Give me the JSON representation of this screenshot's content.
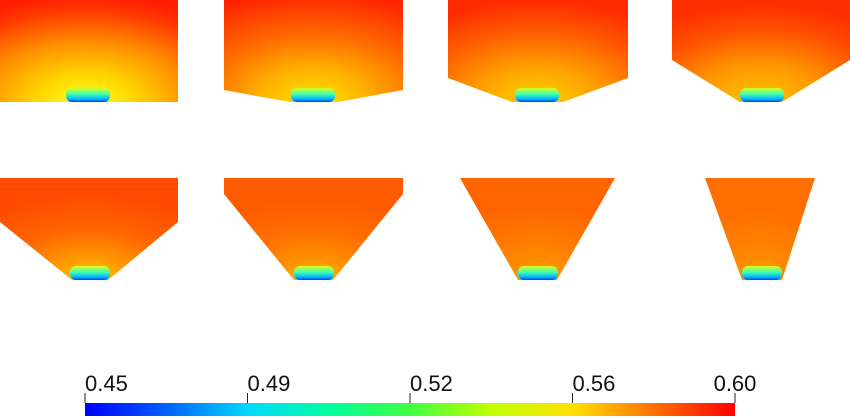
{
  "figure": {
    "panel_count": 8,
    "colors": {
      "low": "#0000ff",
      "mid": "#00ff7f",
      "high": "#ff0000",
      "field_warm": "#ff8a00"
    }
  },
  "colorbar": {
    "min": 0.45,
    "max": 0.6,
    "ticks": [
      "0.45",
      "0.49",
      "0.52",
      "0.56",
      "0.60"
    ],
    "tick_values": [
      0.45,
      0.49,
      0.52,
      0.56,
      0.6
    ]
  }
}
